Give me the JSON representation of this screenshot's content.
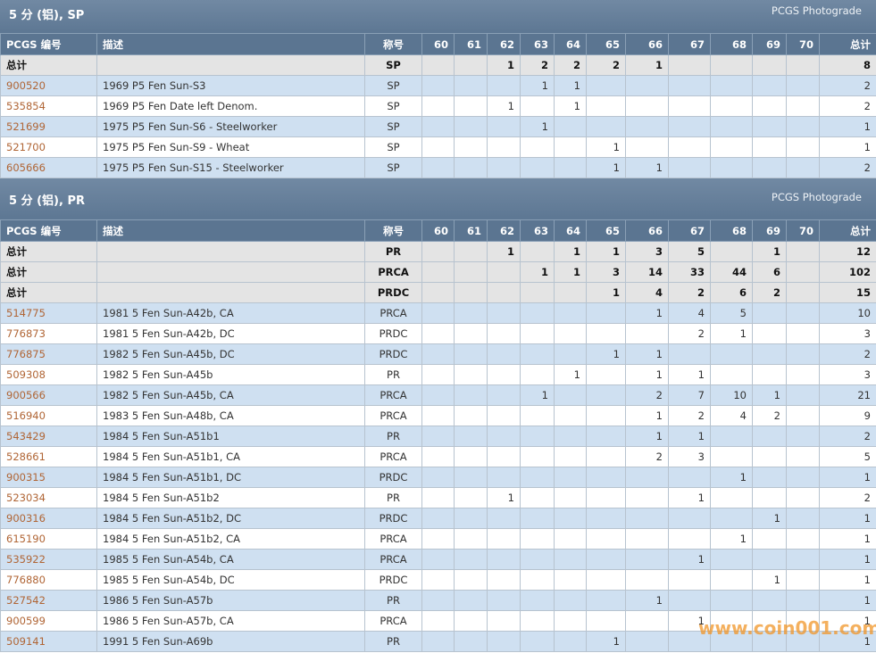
{
  "sections": [
    {
      "title": "5 分 (铝), SP",
      "source": "PCGS Photograde",
      "columns": [
        "PCGS 编号",
        "描述",
        "称号",
        60,
        61,
        62,
        63,
        64,
        65,
        66,
        67,
        68,
        69,
        70,
        "总计"
      ],
      "totals": [
        [
          "总计",
          null,
          "SP",
          null,
          null,
          1,
          2,
          2,
          2,
          1,
          null,
          null,
          null,
          null,
          8
        ]
      ],
      "rows": [
        [
          "900520",
          "1969 P5 Fen Sun-S3",
          "SP",
          null,
          null,
          null,
          1,
          1,
          null,
          null,
          null,
          null,
          null,
          null,
          2
        ],
        [
          "535854",
          "1969 P5 Fen Date left Denom.",
          "SP",
          null,
          null,
          1,
          null,
          1,
          null,
          null,
          null,
          null,
          null,
          null,
          2
        ],
        [
          "521699",
          "1975 P5 Fen Sun-S6 - Steelworker",
          "SP",
          null,
          null,
          null,
          1,
          null,
          null,
          null,
          null,
          null,
          null,
          null,
          1
        ],
        [
          "521700",
          "1975 P5 Fen Sun-S9 - Wheat",
          "SP",
          null,
          null,
          null,
          null,
          null,
          1,
          null,
          null,
          null,
          null,
          null,
          1
        ],
        [
          "605666",
          "1975 P5 Fen Sun-S15 - Steelworker",
          "SP",
          null,
          null,
          null,
          null,
          null,
          1,
          1,
          null,
          null,
          null,
          null,
          2
        ]
      ]
    },
    {
      "title": "5 分 (铝), PR",
      "source": "PCGS Photograde",
      "columns": [
        "PCGS 编号",
        "描述",
        "称号",
        60,
        61,
        62,
        63,
        64,
        65,
        66,
        67,
        68,
        69,
        70,
        "总计"
      ],
      "totals": [
        [
          "总计",
          null,
          "PR",
          null,
          null,
          1,
          null,
          1,
          1,
          3,
          5,
          null,
          1,
          null,
          12
        ],
        [
          "总计",
          null,
          "PRCA",
          null,
          null,
          null,
          1,
          1,
          3,
          14,
          33,
          44,
          6,
          null,
          102
        ],
        [
          "总计",
          null,
          "PRDC",
          null,
          null,
          null,
          null,
          null,
          1,
          4,
          2,
          6,
          2,
          null,
          15
        ]
      ],
      "rows": [
        [
          "514775",
          "1981 5 Fen Sun-A42b, CA",
          "PRCA",
          null,
          null,
          null,
          null,
          null,
          null,
          1,
          4,
          5,
          null,
          null,
          10
        ],
        [
          "776873",
          "1981 5 Fen Sun-A42b, DC",
          "PRDC",
          null,
          null,
          null,
          null,
          null,
          null,
          null,
          2,
          1,
          null,
          null,
          3
        ],
        [
          "776875",
          "1982 5 Fen Sun-A45b, DC",
          "PRDC",
          null,
          null,
          null,
          null,
          null,
          1,
          1,
          null,
          null,
          null,
          null,
          2
        ],
        [
          "509308",
          "1982 5 Fen Sun-A45b",
          "PR",
          null,
          null,
          null,
          null,
          1,
          null,
          1,
          1,
          null,
          null,
          null,
          3
        ],
        [
          "900566",
          "1982 5 Fen Sun-A45b, CA",
          "PRCA",
          null,
          null,
          null,
          1,
          null,
          null,
          2,
          7,
          10,
          1,
          null,
          21
        ],
        [
          "516940",
          "1983 5 Fen Sun-A48b, CA",
          "PRCA",
          null,
          null,
          null,
          null,
          null,
          null,
          1,
          2,
          4,
          2,
          null,
          9
        ],
        [
          "543429",
          "1984 5 Fen Sun-A51b1",
          "PR",
          null,
          null,
          null,
          null,
          null,
          null,
          1,
          1,
          null,
          null,
          null,
          2
        ],
        [
          "528661",
          "1984 5 Fen Sun-A51b1, CA",
          "PRCA",
          null,
          null,
          null,
          null,
          null,
          null,
          2,
          3,
          null,
          null,
          null,
          5
        ],
        [
          "900315",
          "1984 5 Fen Sun-A51b1, DC",
          "PRDC",
          null,
          null,
          null,
          null,
          null,
          null,
          null,
          null,
          1,
          null,
          null,
          1
        ],
        [
          "523034",
          "1984 5 Fen Sun-A51b2",
          "PR",
          null,
          null,
          1,
          null,
          null,
          null,
          null,
          1,
          null,
          null,
          null,
          2
        ],
        [
          "900316",
          "1984 5 Fen Sun-A51b2, DC",
          "PRDC",
          null,
          null,
          null,
          null,
          null,
          null,
          null,
          null,
          null,
          1,
          null,
          1
        ],
        [
          "615190",
          "1984 5 Fen Sun-A51b2, CA",
          "PRCA",
          null,
          null,
          null,
          null,
          null,
          null,
          null,
          null,
          1,
          null,
          null,
          1
        ],
        [
          "535922",
          "1985 5 Fen Sun-A54b, CA",
          "PRCA",
          null,
          null,
          null,
          null,
          null,
          null,
          null,
          1,
          null,
          null,
          null,
          1
        ],
        [
          "776880",
          "1985 5 Fen Sun-A54b, DC",
          "PRDC",
          null,
          null,
          null,
          null,
          null,
          null,
          null,
          null,
          null,
          1,
          null,
          1
        ],
        [
          "527542",
          "1986 5 Fen Sun-A57b",
          "PR",
          null,
          null,
          null,
          null,
          null,
          null,
          1,
          null,
          null,
          null,
          null,
          1
        ],
        [
          "900599",
          "1986 5 Fen Sun-A57b, CA",
          "PRCA",
          null,
          null,
          null,
          null,
          null,
          null,
          null,
          1,
          null,
          null,
          null,
          1
        ],
        [
          "509141",
          "1991 5 Fen Sun-A69b",
          "PR",
          null,
          null,
          null,
          null,
          null,
          1,
          null,
          null,
          null,
          null,
          null,
          1
        ]
      ]
    }
  ],
  "watermark": "www.coin001.com"
}
